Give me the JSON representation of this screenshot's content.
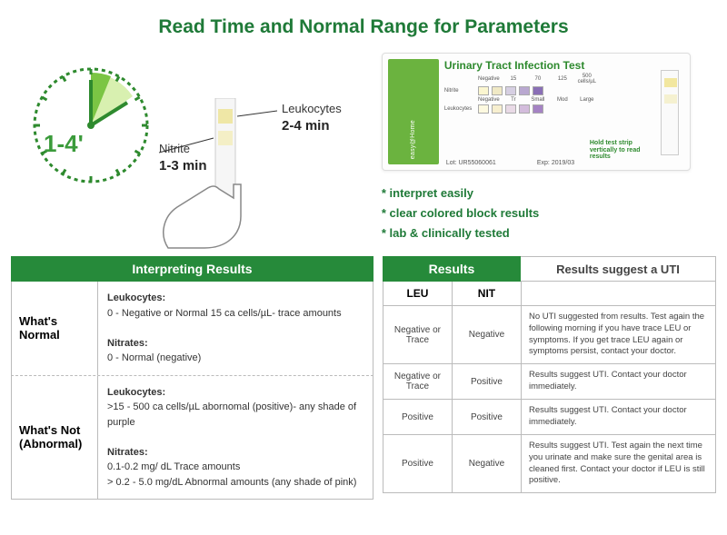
{
  "title": {
    "text": "Read Time and Normal Range for Parameters",
    "color": "#1f7a38"
  },
  "clock": {
    "big_label": "1-4'",
    "big_color": "#3b9b3b",
    "outline_color": "#2e8a2e",
    "arc_color": "#7bc544",
    "arc_light": "#d8f0b0",
    "nitrite_label": "Nitrite",
    "nitrite_time": "1-3 min",
    "leu_label": "Leukocytes",
    "leu_time": "2-4 min",
    "strip_stem": "#f6f6f6",
    "strip_pad1": "#efe7a6",
    "strip_pad2": "#f4efc6",
    "hand_stroke": "#888888"
  },
  "packaging": {
    "title": "Urinary Tract Infection Test",
    "brand": "easy@Home",
    "lot_label": "Lot:",
    "lot_value": "UR55060061",
    "exp_label": "Exp:",
    "exp_value": "2019/03",
    "hold_note": "Hold test strip vertically to read results",
    "rows": [
      {
        "label": "Nitrite",
        "heads": [
          "Negative",
          "15",
          "70",
          "125",
          "500 cells/µL"
        ],
        "swatches": [
          "#fbf6d0",
          "#f0e9c5",
          "#d6cfe2",
          "#b9a8d0",
          "#8a6fb6"
        ]
      },
      {
        "label": "Leukocytes",
        "heads": [
          "Negative",
          "Tr",
          "Small",
          "Mod",
          "Large"
        ],
        "swatches": [
          "#fdf9e0",
          "#f7efcf",
          "#e9dae6",
          "#d3bcdc",
          "#a583c4"
        ]
      }
    ]
  },
  "bullets": {
    "color": "#1f7a38",
    "items": [
      "* interpret easily",
      "* clear colored block results",
      "* lab & clinically tested"
    ]
  },
  "interpret_table": {
    "header": "Interpreting Results",
    "rows": [
      {
        "label": "What's Normal",
        "leu_label": "Leukocytes:",
        "leu_text": "0 - Negative or Normal        15 ca cells/µL- trace amounts",
        "nit_label": "Nitrates:",
        "nit_text": "0 -  Normal (negative)"
      },
      {
        "label": "What's Not (Abnormal)",
        "leu_label": "Leukocytes:",
        "leu_text": ">15 - 500 ca cells/µL abornomal (positive)- any shade of purple",
        "nit_label": "Nitrates:",
        "nit_text": "0.1-0.2 mg/ dL Trace amounts\n> 0.2 - 5.0   mg/dL  Abnormal amounts (any shade of pink)"
      }
    ]
  },
  "results_table": {
    "header": "Results",
    "suggest_header": "Results suggest a UTI",
    "col_leu": "LEU",
    "col_nit": "NIT",
    "rows": [
      {
        "leu": "Negative or Trace",
        "nit": "Negative",
        "text": "No UTI suggested from results. Test again the following morning if you have trace LEU or symptoms. If you get trace LEU again or symptoms persist, contact your doctor."
      },
      {
        "leu": "Negative or Trace",
        "nit": "Positive",
        "text": "Results suggest UTI. Contact your doctor immediately."
      },
      {
        "leu": "Positive",
        "nit": "Positive",
        "text": "Results suggest UTI. Contact your doctor immediately."
      },
      {
        "leu": "Positive",
        "nit": "Negative",
        "text": "Results suggest UTI. Test again the next time you urinate and make sure the genital area is cleaned first. Contact your doctor if LEU is still positive."
      }
    ]
  }
}
